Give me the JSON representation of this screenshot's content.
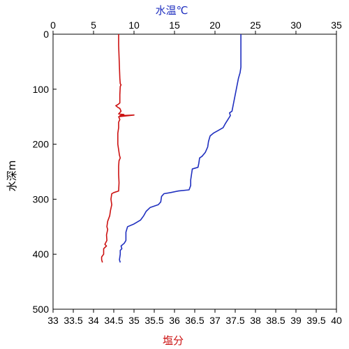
{
  "chart_data": {
    "type": "line",
    "top_axis": {
      "label": "水温℃",
      "color": "#1f2fbf",
      "range": [
        0,
        35
      ],
      "ticks": [
        "0",
        "5",
        "10",
        "15",
        "20",
        "25",
        "30",
        "35"
      ],
      "tick_values": [
        0,
        5,
        10,
        15,
        20,
        25,
        30,
        35
      ]
    },
    "bottom_axis": {
      "label": "塩分",
      "color": "#cc1111",
      "range": [
        33,
        40
      ],
      "ticks": [
        "33",
        "33.5",
        "34",
        "34.5",
        "35",
        "35.5",
        "36",
        "36.5",
        "37",
        "37.5",
        "38",
        "38.5",
        "39",
        "39.5",
        "40"
      ],
      "tick_values": [
        33,
        33.5,
        34,
        34.5,
        35,
        35.5,
        36,
        36.5,
        37,
        37.5,
        38,
        38.5,
        39,
        39.5,
        40
      ]
    },
    "left_axis": {
      "label": "水深m",
      "range": [
        0,
        500
      ],
      "inverted": true,
      "ticks": [
        "0",
        "100",
        "200",
        "300",
        "400",
        "500"
      ],
      "tick_values": [
        0,
        100,
        200,
        300,
        400,
        500
      ]
    },
    "series": [
      {
        "axis": "top",
        "color": "#1f2fbf",
        "points": [
          [
            23.2,
            0
          ],
          [
            23.2,
            20
          ],
          [
            23.2,
            40
          ],
          [
            23.2,
            60
          ],
          [
            23.1,
            70
          ],
          [
            22.9,
            80
          ],
          [
            22.7,
            95
          ],
          [
            22.5,
            110
          ],
          [
            22.3,
            125
          ],
          [
            22.1,
            140
          ],
          [
            21.8,
            143
          ],
          [
            21.9,
            148
          ],
          [
            21.6,
            155
          ],
          [
            21.3,
            162
          ],
          [
            21.0,
            170
          ],
          [
            20.4,
            175
          ],
          [
            19.8,
            180
          ],
          [
            19.4,
            185
          ],
          [
            19.2,
            195
          ],
          [
            19.1,
            205
          ],
          [
            18.8,
            215
          ],
          [
            18.4,
            222
          ],
          [
            18.1,
            225
          ],
          [
            18.0,
            235
          ],
          [
            17.9,
            242
          ],
          [
            17.2,
            245
          ],
          [
            17.1,
            255
          ],
          [
            17.0,
            265
          ],
          [
            17.0,
            275
          ],
          [
            16.8,
            283
          ],
          [
            15.5,
            285
          ],
          [
            14.5,
            288
          ],
          [
            13.7,
            290
          ],
          [
            13.4,
            295
          ],
          [
            13.3,
            305
          ],
          [
            13.0,
            310
          ],
          [
            12.0,
            315
          ],
          [
            11.5,
            322
          ],
          [
            11.2,
            330
          ],
          [
            10.8,
            338
          ],
          [
            10.0,
            345
          ],
          [
            9.2,
            350
          ],
          [
            9.0,
            360
          ],
          [
            9.0,
            375
          ],
          [
            8.8,
            380
          ],
          [
            8.4,
            385
          ],
          [
            8.5,
            390
          ],
          [
            8.3,
            393
          ],
          [
            8.3,
            400
          ],
          [
            8.2,
            410
          ],
          [
            8.3,
            415
          ]
        ]
      },
      {
        "axis": "bottom",
        "color": "#cc1111",
        "points": [
          [
            34.62,
            0
          ],
          [
            34.62,
            20
          ],
          [
            34.63,
            40
          ],
          [
            34.64,
            60
          ],
          [
            34.65,
            80
          ],
          [
            34.66,
            90
          ],
          [
            34.68,
            92
          ],
          [
            34.66,
            95
          ],
          [
            34.65,
            110
          ],
          [
            34.65,
            125
          ],
          [
            34.6,
            128
          ],
          [
            34.55,
            130
          ],
          [
            34.6,
            133
          ],
          [
            34.65,
            135
          ],
          [
            34.68,
            140
          ],
          [
            34.62,
            145
          ],
          [
            34.75,
            146
          ],
          [
            34.65,
            148
          ],
          [
            35.0,
            147
          ],
          [
            34.62,
            150
          ],
          [
            34.65,
            155
          ],
          [
            34.62,
            160
          ],
          [
            34.62,
            170
          ],
          [
            34.6,
            180
          ],
          [
            34.6,
            190
          ],
          [
            34.6,
            200
          ],
          [
            34.62,
            210
          ],
          [
            34.64,
            220
          ],
          [
            34.66,
            225
          ],
          [
            34.63,
            230
          ],
          [
            34.62,
            240
          ],
          [
            34.62,
            255
          ],
          [
            34.63,
            270
          ],
          [
            34.62,
            285
          ],
          [
            34.5,
            288
          ],
          [
            34.45,
            290
          ],
          [
            34.43,
            300
          ],
          [
            34.45,
            310
          ],
          [
            34.42,
            320
          ],
          [
            34.4,
            330
          ],
          [
            34.35,
            340
          ],
          [
            34.33,
            350
          ],
          [
            34.35,
            355
          ],
          [
            34.32,
            365
          ],
          [
            34.33,
            375
          ],
          [
            34.28,
            382
          ],
          [
            34.32,
            385
          ],
          [
            34.25,
            390
          ],
          [
            34.25,
            400
          ],
          [
            34.2,
            405
          ],
          [
            34.2,
            410
          ],
          [
            34.22,
            415
          ]
        ]
      }
    ],
    "grid": false,
    "legend": "none"
  }
}
